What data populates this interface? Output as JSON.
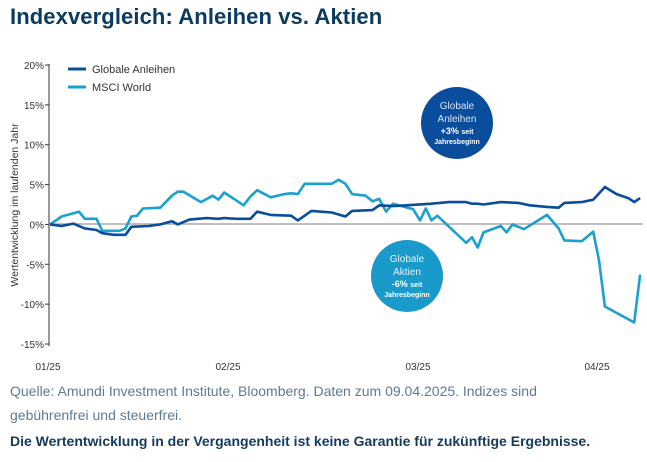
{
  "chart_data": {
    "type": "line",
    "title": "Indexvergleich: Anleihen vs. Aktien",
    "ylabel": "Wertentwicklung im laufenden Jahr",
    "xlabel": "",
    "ylim": [
      -15,
      20
    ],
    "yticks": [
      20,
      15,
      10,
      5,
      0,
      -5,
      -10,
      -15
    ],
    "ytick_labels": [
      "20%",
      "15%",
      "10%",
      "5%",
      "0%",
      "-5%",
      "-10%",
      "-15%"
    ],
    "xticks": [
      "2025-01-01",
      "2025-02-01",
      "2025-03-01",
      "2025-04-01"
    ],
    "xtick_labels": [
      "01/25",
      "02/25",
      "03/25",
      "04/25"
    ],
    "grid": false,
    "legend_position": "top-left",
    "series": [
      {
        "name": "Globale Anleihen",
        "color": "#0a4d9c",
        "points": [
          [
            "2025-01-01",
            0
          ],
          [
            "2025-01-03",
            -0.2
          ],
          [
            "2025-01-05",
            0.1
          ],
          [
            "2025-01-07",
            -0.5
          ],
          [
            "2025-01-09",
            -0.7
          ],
          [
            "2025-01-10",
            -1.1
          ],
          [
            "2025-01-12",
            -1.3
          ],
          [
            "2025-01-14",
            -1.3
          ],
          [
            "2025-01-15",
            -0.3
          ],
          [
            "2025-01-18",
            -0.2
          ],
          [
            "2025-01-20",
            0
          ],
          [
            "2025-01-22",
            0.4
          ],
          [
            "2025-01-23",
            0
          ],
          [
            "2025-01-25",
            0.6
          ],
          [
            "2025-01-28",
            0.8
          ],
          [
            "2025-01-30",
            0.7
          ],
          [
            "2025-01-31",
            0.8
          ],
          [
            "2025-02-02",
            0.7
          ],
          [
            "2025-02-04",
            0.7
          ],
          [
            "2025-02-05",
            1.6
          ],
          [
            "2025-02-07",
            1.2
          ],
          [
            "2025-02-10",
            1.1
          ],
          [
            "2025-02-11",
            0.5
          ],
          [
            "2025-02-13",
            1.7
          ],
          [
            "2025-02-16",
            1.5
          ],
          [
            "2025-02-18",
            1.0
          ],
          [
            "2025-02-19",
            1.7
          ],
          [
            "2025-02-22",
            1.8
          ],
          [
            "2025-02-23",
            2.4
          ],
          [
            "2025-02-25",
            2.3
          ],
          [
            "2025-02-27",
            2.4
          ],
          [
            "2025-03-03",
            2.6
          ],
          [
            "2025-03-06",
            2.8
          ],
          [
            "2025-03-09",
            2.8
          ],
          [
            "2025-03-10",
            2.6
          ],
          [
            "2025-03-11",
            2.6
          ],
          [
            "2025-03-12",
            2.5
          ],
          [
            "2025-03-15",
            2.8
          ],
          [
            "2025-03-18",
            2.7
          ],
          [
            "2025-03-20",
            2.4
          ],
          [
            "2025-03-23",
            2.2
          ],
          [
            "2025-03-25",
            2.1
          ],
          [
            "2025-03-26",
            2.7
          ],
          [
            "2025-03-29",
            2.8
          ],
          [
            "2025-03-31",
            3.1
          ],
          [
            "2025-04-02",
            4.7
          ],
          [
            "2025-04-04",
            3.8
          ],
          [
            "2025-04-06",
            3.3
          ],
          [
            "2025-04-07",
            2.8
          ],
          [
            "2025-04-08",
            3.3
          ]
        ]
      },
      {
        "name": "MSCI World",
        "color": "#1ba0d0",
        "points": [
          [
            "2025-01-01",
            0
          ],
          [
            "2025-01-03",
            1.0
          ],
          [
            "2025-01-06",
            1.6
          ],
          [
            "2025-01-07",
            0.7
          ],
          [
            "2025-01-09",
            0.7
          ],
          [
            "2025-01-10",
            -0.8
          ],
          [
            "2025-01-13",
            -0.8
          ],
          [
            "2025-01-14",
            -0.5
          ],
          [
            "2025-01-15",
            1.0
          ],
          [
            "2025-01-16",
            1.1
          ],
          [
            "2025-01-17",
            2.0
          ],
          [
            "2025-01-20",
            2.1
          ],
          [
            "2025-01-22",
            3.6
          ],
          [
            "2025-01-23",
            4.1
          ],
          [
            "2025-01-24",
            4.1
          ],
          [
            "2025-01-27",
            2.8
          ],
          [
            "2025-01-29",
            3.6
          ],
          [
            "2025-01-30",
            3.1
          ],
          [
            "2025-01-31",
            4.0
          ],
          [
            "2025-02-03",
            2.4
          ],
          [
            "2025-02-04",
            3.5
          ],
          [
            "2025-02-05",
            4.3
          ],
          [
            "2025-02-07",
            3.4
          ],
          [
            "2025-02-09",
            3.8
          ],
          [
            "2025-02-10",
            3.9
          ],
          [
            "2025-02-11",
            3.8
          ],
          [
            "2025-02-12",
            5.1
          ],
          [
            "2025-02-16",
            5.1
          ],
          [
            "2025-02-17",
            5.6
          ],
          [
            "2025-02-18",
            5.1
          ],
          [
            "2025-02-19",
            3.8
          ],
          [
            "2025-02-21",
            3.6
          ],
          [
            "2025-02-22",
            2.9
          ],
          [
            "2025-02-23",
            3.2
          ],
          [
            "2025-02-24",
            1.6
          ],
          [
            "2025-02-25",
            2.6
          ],
          [
            "2025-02-28",
            1.9
          ],
          [
            "2025-03-01",
            0.5
          ],
          [
            "2025-03-02",
            2.0
          ],
          [
            "2025-03-03",
            0.5
          ],
          [
            "2025-03-04",
            1.1
          ],
          [
            "2025-03-09",
            -2.3
          ],
          [
            "2025-03-10",
            -1.6
          ],
          [
            "2025-03-11",
            -2.9
          ],
          [
            "2025-03-12",
            -1.0
          ],
          [
            "2025-03-15",
            -0.2
          ],
          [
            "2025-03-16",
            -1.0
          ],
          [
            "2025-03-17",
            0
          ],
          [
            "2025-03-19",
            -0.6
          ],
          [
            "2025-03-23",
            1.2
          ],
          [
            "2025-03-25",
            -0.5
          ],
          [
            "2025-03-26",
            -2.0
          ],
          [
            "2025-03-29",
            -2.1
          ],
          [
            "2025-03-31",
            -0.9
          ],
          [
            "2025-04-01",
            -4.5
          ],
          [
            "2025-04-02",
            -10.3
          ],
          [
            "2025-04-07",
            -12.3
          ],
          [
            "2025-04-08",
            -6.3
          ]
        ]
      }
    ],
    "annotations": [
      {
        "lines": [
          "Globale",
          "Anleihen"
        ],
        "value": "+3%",
        "suffix": "seit",
        "line3": "Jahresbeginn",
        "color": "#0a4d9c"
      },
      {
        "lines": [
          "Globale",
          "Aktien"
        ],
        "value": "-6%",
        "suffix": "seit",
        "line3": "Jahresbeginn",
        "color": "#1a9acb"
      }
    ]
  },
  "caption": {
    "source_line1": "Quelle: Amundi Investment Institute, Bloomberg. Daten zum 09.04.2025. Indizes sind",
    "source_line2": "gebührenfrei und steuerfrei.",
    "disclaimer": "Die Wertentwicklung in der Vergangenheit ist keine Garantie für zukünftige Ergebnisse."
  }
}
